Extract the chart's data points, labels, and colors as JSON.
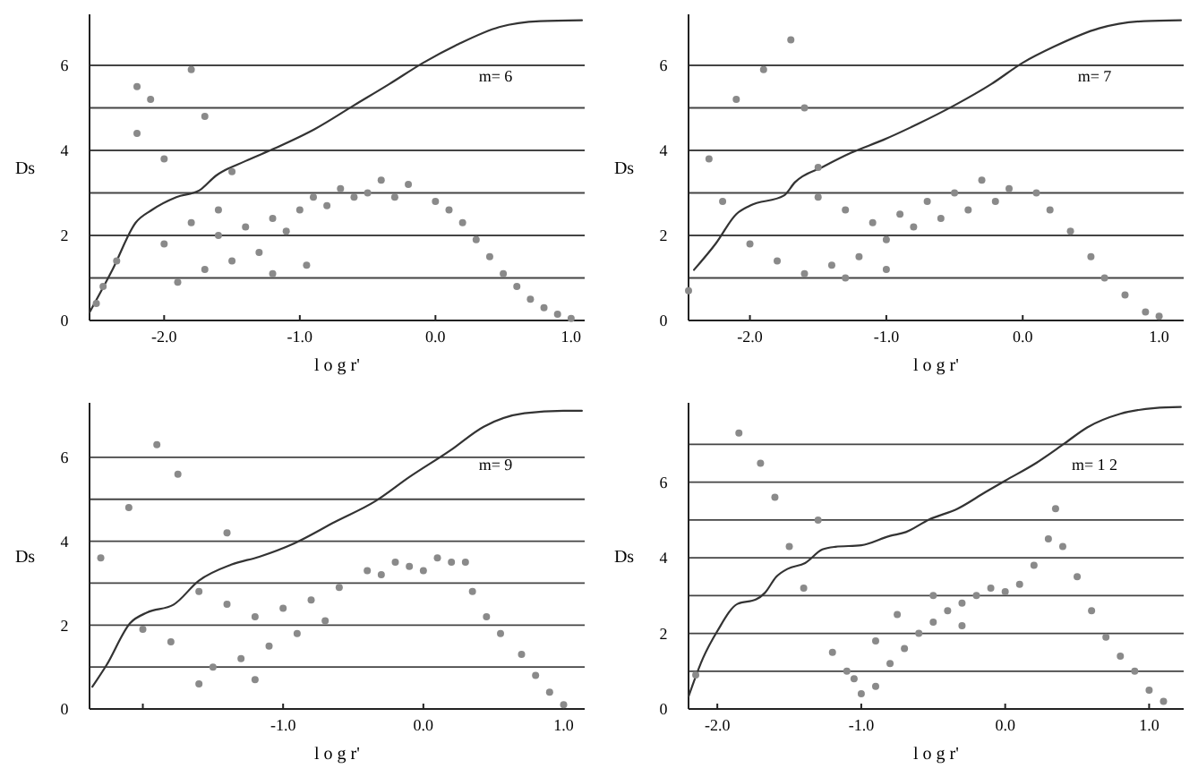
{
  "chart_data": [
    {
      "type": "line",
      "xlabel": "l o g r'",
      "ylabel": "Ds",
      "annotations": [
        "m= 6"
      ],
      "xlim": [
        -2.55,
        1.1
      ],
      "ylim": [
        0,
        7.2
      ],
      "xticks": [
        {
          "value": -2,
          "label": "-2.0"
        },
        {
          "value": -1,
          "label": "-1.0"
        },
        {
          "value": 0,
          "label": "0.0"
        },
        {
          "value": 1,
          "label": "1.0"
        }
      ],
      "yticks": [
        0,
        {
          "value": 1,
          "label": null
        },
        2,
        {
          "value": 3,
          "label": null
        },
        4,
        {
          "value": 5,
          "label": null
        },
        6
      ],
      "grid": "y",
      "series": [
        {
          "color": "#333333",
          "x": [
            -2.55,
            -2.38,
            -2.21,
            -2.09,
            -1.91,
            -1.74,
            -1.62,
            -1.4,
            -1.19,
            -0.89,
            -0.6,
            -0.34,
            -0.09,
            0.17,
            0.47,
            0.77,
            1.08
          ],
          "values": [
            0.19,
            1.2,
            2.3,
            2.6,
            2.9,
            3.06,
            3.4,
            3.75,
            4.04,
            4.5,
            5.06,
            5.56,
            6.06,
            6.5,
            6.9,
            7.04,
            7.06
          ]
        },
        {
          "type": "scatter",
          "marker": "circle",
          "color": "#8a8a8a",
          "x": [
            0.0,
            0.1,
            0.2,
            0.3,
            0.4,
            0.5,
            0.6,
            0.7,
            0.8,
            0.9,
            1.0,
            -0.2,
            -0.4,
            -0.5,
            -0.6,
            -0.8,
            -1.0,
            -1.2,
            -1.4,
            -1.6,
            -0.3,
            -0.7,
            -0.9,
            -1.1,
            -1.3,
            -1.5,
            -1.7,
            -1.9,
            -1.2,
            -0.95,
            -1.6,
            -1.8,
            -2.0,
            -2.2,
            -2.1,
            -1.8,
            -1.7,
            -2.2,
            -2.0,
            -1.5,
            -2.5,
            -2.45,
            -2.35
          ],
          "values": [
            2.8,
            2.6,
            2.3,
            1.9,
            1.5,
            1.1,
            0.8,
            0.5,
            0.3,
            0.15,
            0.05,
            3.2,
            3.3,
            3.0,
            2.9,
            2.7,
            2.6,
            2.4,
            2.2,
            2.0,
            2.9,
            3.1,
            2.9,
            2.1,
            1.6,
            1.4,
            1.2,
            0.9,
            1.1,
            1.3,
            2.6,
            2.3,
            1.8,
            5.5,
            5.2,
            5.9,
            4.8,
            4.4,
            3.8,
            3.5,
            0.4,
            0.8,
            1.4
          ]
        }
      ]
    },
    {
      "type": "line",
      "xlabel": "l o g r'",
      "ylabel": "Ds",
      "annotations": [
        "m= 7"
      ],
      "xlim": [
        -2.45,
        1.18
      ],
      "ylim": [
        0,
        7.2
      ],
      "xticks": [
        {
          "value": -2,
          "label": "-2.0"
        },
        {
          "value": -1,
          "label": "-1.0"
        },
        {
          "value": 0,
          "label": "0.0"
        },
        {
          "value": 1,
          "label": "1.0"
        }
      ],
      "yticks": [
        0,
        {
          "value": 1,
          "label": null
        },
        2,
        {
          "value": 3,
          "label": null
        },
        4,
        {
          "value": 5,
          "label": null
        },
        6
      ],
      "grid": "y",
      "series": [
        {
          "color": "#333333",
          "x": [
            -2.41,
            -2.25,
            -2.1,
            -2.0,
            -1.75,
            -1.67,
            -1.46,
            -1.26,
            -1.02,
            -0.77,
            -0.5,
            -0.23,
            0.0,
            0.23,
            0.56,
            0.89,
            1.16
          ],
          "values": [
            1.19,
            1.81,
            2.5,
            2.7,
            2.94,
            3.25,
            3.62,
            3.94,
            4.25,
            4.62,
            5.06,
            5.56,
            6.06,
            6.44,
            6.87,
            7.04,
            7.06
          ]
        },
        {
          "type": "scatter",
          "marker": "circle",
          "color": "#8a8a8a",
          "x": [
            0.1,
            0.2,
            0.35,
            0.5,
            0.6,
            0.75,
            0.9,
            1.0,
            -0.1,
            -0.3,
            -0.5,
            -0.7,
            -0.9,
            -1.1,
            -1.3,
            -1.5,
            -0.2,
            -0.4,
            -0.6,
            -0.8,
            -1.0,
            -1.2,
            -1.4,
            -1.6,
            -1.8,
            -2.0,
            -1.3,
            -1.0,
            -1.9,
            -2.1,
            -1.7,
            -1.6,
            -2.3,
            -1.5,
            -2.45,
            -2.2
          ],
          "values": [
            3.0,
            2.6,
            2.1,
            1.5,
            1.0,
            0.6,
            0.2,
            0.1,
            3.1,
            3.3,
            3.0,
            2.8,
            2.5,
            2.3,
            2.6,
            2.9,
            2.8,
            2.6,
            2.4,
            2.2,
            1.9,
            1.5,
            1.3,
            1.1,
            1.4,
            1.8,
            1.0,
            1.2,
            5.9,
            5.2,
            6.6,
            5.0,
            3.8,
            3.6,
            0.7,
            2.8
          ]
        }
      ]
    },
    {
      "type": "line",
      "xlabel": "l o g r'",
      "ylabel": "Ds",
      "annotations": [
        "m= 9"
      ],
      "xlim": [
        -2.38,
        1.15
      ],
      "ylim": [
        0,
        7.3
      ],
      "xticks": [
        {
          "value": -2,
          "label": null
        },
        {
          "value": -1,
          "label": "-1.0"
        },
        {
          "value": 0,
          "label": "0.0"
        },
        {
          "value": 1,
          "label": "1.0"
        }
      ],
      "yticks": [
        0,
        {
          "value": 1,
          "label": null
        },
        2,
        {
          "value": 3,
          "label": null
        },
        4,
        {
          "value": 5,
          "label": null
        },
        6
      ],
      "grid": "y",
      "series": [
        {
          "color": "#333333",
          "x": [
            -2.36,
            -2.26,
            -2.09,
            -1.97,
            -1.78,
            -1.6,
            -1.37,
            -1.17,
            -0.92,
            -0.63,
            -0.34,
            -0.1,
            0.19,
            0.43,
            0.72,
            1.0,
            1.13
          ],
          "values": [
            0.53,
            1.04,
            2.05,
            2.3,
            2.49,
            3.06,
            3.44,
            3.63,
            3.95,
            4.46,
            4.96,
            5.53,
            6.16,
            6.73,
            7.05,
            7.11,
            7.11
          ]
        },
        {
          "type": "scatter",
          "marker": "circle",
          "color": "#8a8a8a",
          "x": [
            -0.4,
            -0.3,
            -0.2,
            -0.1,
            0.0,
            0.1,
            0.2,
            0.3,
            0.35,
            0.45,
            0.55,
            0.7,
            0.8,
            0.9,
            1.0,
            -0.6,
            -0.8,
            -1.0,
            -1.2,
            -1.4,
            -1.6,
            -0.7,
            -0.9,
            -1.1,
            -1.3,
            -1.5,
            -1.8,
            -2.0,
            -1.2,
            -1.6,
            -1.9,
            -1.75,
            -2.1,
            -1.4,
            -2.3
          ],
          "values": [
            3.3,
            3.2,
            3.5,
            3.4,
            3.3,
            3.6,
            3.5,
            3.5,
            2.8,
            2.2,
            1.8,
            1.3,
            0.8,
            0.4,
            0.1,
            2.9,
            2.6,
            2.4,
            2.2,
            2.5,
            2.8,
            2.1,
            1.8,
            1.5,
            1.2,
            1.0,
            1.6,
            1.9,
            0.7,
            0.6,
            6.3,
            5.6,
            4.8,
            4.2,
            3.6
          ]
        }
      ]
    },
    {
      "type": "line",
      "xlabel": "l o g r'",
      "ylabel": "Ds",
      "annotations": [
        "m= 1 2"
      ],
      "xlim": [
        -2.2,
        1.24
      ],
      "ylim": [
        0,
        8.1
      ],
      "xticks": [
        {
          "value": -2,
          "label": "-2.0"
        },
        {
          "value": -1,
          "label": "-1.0"
        },
        {
          "value": 0,
          "label": "0.0"
        },
        {
          "value": 1,
          "label": "1.0"
        }
      ],
      "yticks": [
        0,
        {
          "value": 1,
          "label": null
        },
        2,
        {
          "value": 3,
          "label": null
        },
        4,
        {
          "value": 5,
          "label": null
        },
        6,
        {
          "value": 7,
          "label": null
        }
      ],
      "grid": "y",
      "series": [
        {
          "color": "#333333",
          "x": [
            -2.2,
            -2.1,
            -2.0,
            -1.86,
            -1.73,
            -1.67,
            -1.59,
            -1.51,
            -1.39,
            -1.27,
            -1.18,
            -1.0,
            -0.8,
            -0.69,
            -0.53,
            -0.33,
            -0.14,
            0.0,
            0.22,
            0.41,
            0.57,
            0.8,
            1.04,
            1.22
          ],
          "values": [
            0.33,
            1.34,
            2.06,
            2.78,
            2.9,
            3.07,
            3.5,
            3.71,
            3.86,
            4.22,
            4.29,
            4.33,
            4.58,
            4.68,
            5.01,
            5.3,
            5.73,
            6.04,
            6.52,
            7.02,
            7.45,
            7.81,
            7.96,
            7.99
          ]
        },
        {
          "type": "scatter",
          "marker": "circle",
          "color": "#8a8a8a",
          "x": [
            -1.85,
            -1.7,
            -1.6,
            -1.3,
            -1.5,
            -1.4,
            -1.2,
            -1.1,
            -1.0,
            -0.9,
            -0.8,
            -0.7,
            -0.6,
            -0.5,
            -0.4,
            -0.3,
            -0.2,
            -0.1,
            0.0,
            0.1,
            0.2,
            0.3,
            0.35,
            0.4,
            0.5,
            0.6,
            0.7,
            0.8,
            0.9,
            1.0,
            1.1,
            -0.9,
            -0.75,
            -0.5,
            -0.3,
            -1.05,
            -2.15
          ],
          "values": [
            7.3,
            6.5,
            5.6,
            5.0,
            4.3,
            3.2,
            1.5,
            1.0,
            0.4,
            0.6,
            1.2,
            1.6,
            2.0,
            2.3,
            2.6,
            2.8,
            3.0,
            3.2,
            3.1,
            3.3,
            3.8,
            4.5,
            5.3,
            4.3,
            3.5,
            2.6,
            1.9,
            1.4,
            1.0,
            0.5,
            0.2,
            1.8,
            2.5,
            3.0,
            2.2,
            0.8,
            0.9
          ]
        }
      ]
    }
  ]
}
